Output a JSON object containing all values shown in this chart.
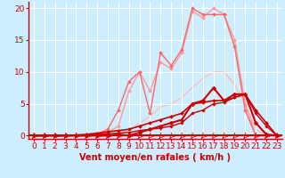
{
  "title": "",
  "xlabel": "Vent moyen/en rafales ( km/h )",
  "background_color": "#cceeff",
  "grid_color": "#ffffff",
  "x_ticks": [
    0,
    1,
    2,
    3,
    4,
    5,
    6,
    7,
    8,
    9,
    10,
    11,
    12,
    13,
    14,
    15,
    16,
    17,
    18,
    19,
    20,
    21,
    22,
    23
  ],
  "y_ticks": [
    0,
    5,
    10,
    15,
    20
  ],
  "ylim": [
    -0.5,
    21
  ],
  "xlim": [
    -0.5,
    23.5
  ],
  "series": [
    {
      "label": "light_pink_smooth",
      "x": [
        0,
        1,
        2,
        3,
        4,
        5,
        6,
        7,
        8,
        9,
        10,
        11,
        12,
        13,
        14,
        15,
        16,
        17,
        18,
        19,
        20,
        21,
        22,
        23
      ],
      "y": [
        0,
        0,
        0,
        0,
        0,
        0,
        0,
        0,
        0.3,
        0.8,
        2,
        3,
        4.5,
        5,
        6,
        7.5,
        9,
        10,
        10,
        8,
        5,
        1,
        0,
        0
      ],
      "color": "#ffbbbb",
      "lw": 1.0,
      "marker": null,
      "ms": 0,
      "zorder": 1
    },
    {
      "label": "light_pink_peaked1",
      "x": [
        0,
        1,
        2,
        3,
        4,
        5,
        6,
        7,
        8,
        9,
        10,
        11,
        12,
        13,
        14,
        15,
        16,
        17,
        18,
        19,
        20,
        21,
        22,
        23
      ],
      "y": [
        0,
        0,
        0,
        0,
        0,
        0,
        0.2,
        0.5,
        1.5,
        7,
        10,
        7,
        11.5,
        10.5,
        13,
        19.5,
        18.5,
        20,
        19,
        15,
        5,
        0,
        0,
        0
      ],
      "color": "#ff9999",
      "lw": 1.0,
      "marker": "D",
      "ms": 2.0,
      "zorder": 2
    },
    {
      "label": "medium_pink_peaked2",
      "x": [
        0,
        1,
        2,
        3,
        4,
        5,
        6,
        7,
        8,
        9,
        10,
        11,
        12,
        13,
        14,
        15,
        16,
        17,
        18,
        19,
        20,
        21,
        22,
        23
      ],
      "y": [
        0,
        0,
        0,
        0,
        0,
        0,
        0.2,
        1.0,
        4,
        8.5,
        10,
        3.5,
        13,
        11,
        13.5,
        20,
        19,
        19,
        19,
        14,
        4,
        0,
        0,
        0
      ],
      "color": "#ff6666",
      "lw": 1.0,
      "marker": "D",
      "ms": 2.0,
      "zorder": 3
    },
    {
      "label": "dark_red_linear1",
      "x": [
        0,
        1,
        2,
        3,
        4,
        5,
        6,
        7,
        8,
        9,
        10,
        11,
        12,
        13,
        14,
        15,
        16,
        17,
        18,
        19,
        20,
        21,
        22,
        23
      ],
      "y": [
        0,
        0,
        0,
        0,
        0.1,
        0.2,
        0.4,
        0.6,
        0.8,
        1.0,
        1.5,
        2.0,
        2.5,
        3.0,
        3.5,
        5.0,
        5.2,
        5.5,
        5.5,
        6.0,
        6.5,
        4.0,
        2.0,
        0
      ],
      "color": "#cc0000",
      "lw": 1.2,
      "marker": "D",
      "ms": 2.0,
      "zorder": 4
    },
    {
      "label": "dark_red_linear2",
      "x": [
        0,
        1,
        2,
        3,
        4,
        5,
        6,
        7,
        8,
        9,
        10,
        11,
        12,
        13,
        14,
        15,
        16,
        17,
        18,
        19,
        20,
        21,
        22,
        23
      ],
      "y": [
        0,
        0,
        0,
        0,
        0.05,
        0.1,
        0.2,
        0.3,
        0.4,
        0.5,
        0.8,
        1.0,
        1.2,
        1.5,
        2.0,
        3.5,
        4.0,
        5.0,
        5.2,
        6.0,
        6.5,
        3.5,
        1.5,
        0
      ],
      "color": "#cc0000",
      "lw": 1.0,
      "marker": "D",
      "ms": 1.8,
      "zorder": 4
    },
    {
      "label": "dark_red_spike",
      "x": [
        0,
        1,
        2,
        3,
        4,
        5,
        6,
        7,
        8,
        9,
        10,
        11,
        12,
        13,
        14,
        15,
        16,
        17,
        18,
        19,
        20,
        21,
        22,
        23
      ],
      "y": [
        0,
        0,
        0,
        0,
        0,
        0,
        0,
        0,
        0.2,
        0,
        0.5,
        1.0,
        1.5,
        2.0,
        2.5,
        5.0,
        5.5,
        7.5,
        5.5,
        6.5,
        6.5,
        2.0,
        0.2,
        0
      ],
      "color": "#cc0000",
      "lw": 1.5,
      "marker": "D",
      "ms": 2.5,
      "zorder": 5
    }
  ],
  "axis_color": "#cc0000",
  "tick_color": "#cc0000",
  "label_color": "#cc0000",
  "xlabel_fontsize": 7,
  "tick_fontsize": 6.5
}
